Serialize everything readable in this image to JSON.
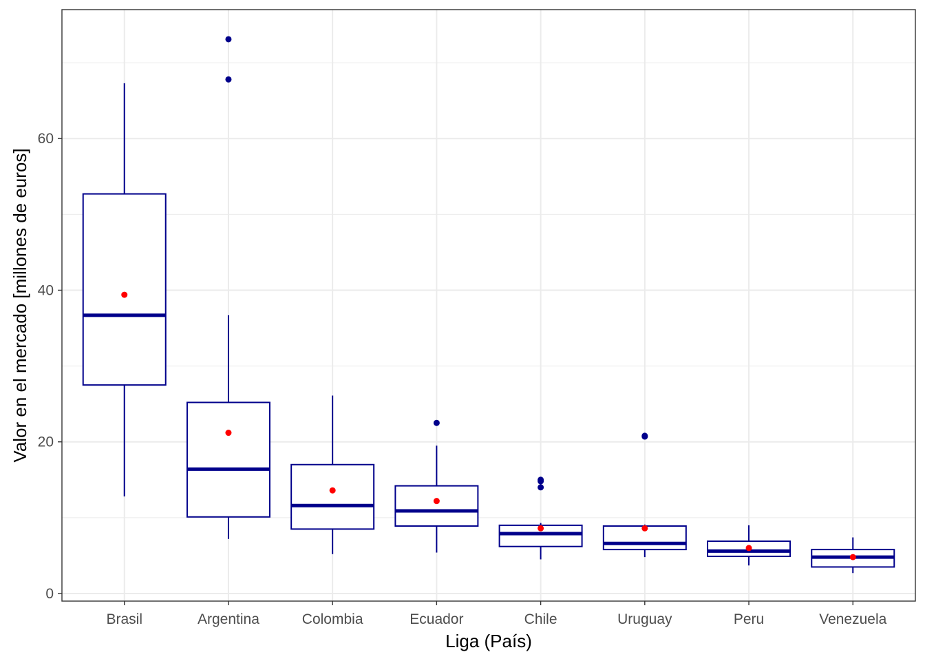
{
  "chart_data": {
    "type": "boxplot",
    "title": "",
    "xlabel": "Liga (País)",
    "ylabel": "Valor en el mercado [millones de euros]",
    "ylim": [
      -1,
      77
    ],
    "y_ticks": [
      0,
      20,
      40,
      60
    ],
    "y_minor_ticks": [
      10,
      30,
      50,
      70
    ],
    "grid": true,
    "colors": {
      "box": "#00008B",
      "mean_point": "#FF0000",
      "outlier": "#00008B",
      "grid": "#ebebeb",
      "panel_border": "#333333"
    },
    "categories": [
      "Brasil",
      "Argentina",
      "Colombia",
      "Ecuador",
      "Chile",
      "Uruguay",
      "Peru",
      "Venezuela"
    ],
    "boxes": [
      {
        "category": "Brasil",
        "whisker_low": 12.8,
        "q1": 27.5,
        "median": 36.7,
        "q3": 52.7,
        "whisker_high": 67.3,
        "mean": 39.4,
        "outliers": []
      },
      {
        "category": "Argentina",
        "whisker_low": 7.2,
        "q1": 10.1,
        "median": 16.4,
        "q3": 25.2,
        "whisker_high": 36.7,
        "mean": 21.2,
        "outliers": [
          73.1,
          67.8
        ]
      },
      {
        "category": "Colombia",
        "whisker_low": 5.2,
        "q1": 8.5,
        "median": 11.6,
        "q3": 17.0,
        "whisker_high": 26.1,
        "mean": 13.6,
        "outliers": []
      },
      {
        "category": "Ecuador",
        "whisker_low": 5.4,
        "q1": 8.9,
        "median": 10.9,
        "q3": 14.2,
        "whisker_high": 19.5,
        "mean": 12.2,
        "outliers": [
          22.5
        ]
      },
      {
        "category": "Chile",
        "whisker_low": 4.5,
        "q1": 6.2,
        "median": 7.9,
        "q3": 9.0,
        "whisker_high": 9.3,
        "mean": 8.6,
        "outliers": [
          15.0,
          14.8,
          14.0
        ]
      },
      {
        "category": "Uruguay",
        "whisker_low": 4.8,
        "q1": 5.8,
        "median": 6.6,
        "q3": 8.9,
        "whisker_high": 9.1,
        "mean": 8.6,
        "outliers": [
          20.8,
          20.7
        ]
      },
      {
        "category": "Peru",
        "whisker_low": 3.7,
        "q1": 4.9,
        "median": 5.6,
        "q3": 6.9,
        "whisker_high": 9.0,
        "mean": 6.0,
        "outliers": []
      },
      {
        "category": "Venezuela",
        "whisker_low": 2.7,
        "q1": 3.5,
        "median": 4.8,
        "q3": 5.8,
        "whisker_high": 7.4,
        "mean": 4.8,
        "outliers": []
      }
    ]
  }
}
